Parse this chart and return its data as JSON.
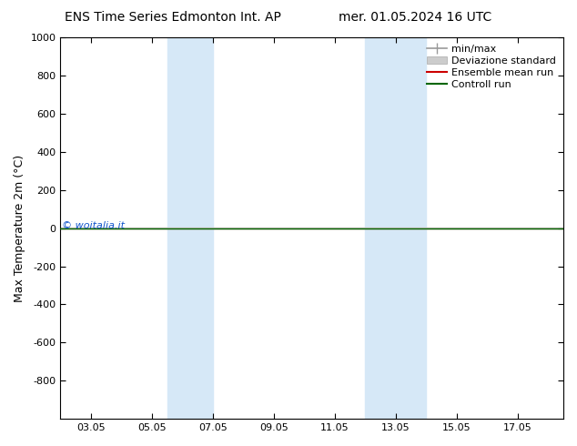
{
  "title_left": "ENS Time Series Edmonton Int. AP",
  "title_right": "mer. 01.05.2024 16 UTC",
  "ylabel": "Max Temperature 2m (°C)",
  "xlabel_ticks": [
    "03.05",
    "05.05",
    "07.05",
    "09.05",
    "11.05",
    "13.05",
    "15.05",
    "17.05"
  ],
  "xlabel_values": [
    2,
    4,
    6,
    8,
    10,
    12,
    14,
    16
  ],
  "xlim": [
    1.0,
    17.5
  ],
  "ylim_top": -1000,
  "ylim_bottom": 1000,
  "yticks": [
    -800,
    -600,
    -400,
    -200,
    0,
    200,
    400,
    600,
    800,
    1000
  ],
  "bg_color": "#ffffff",
  "plot_bg_color": "#ffffff",
  "shaded_columns": [
    {
      "x_start": 4.5,
      "x_end": 6.0
    },
    {
      "x_start": 11.0,
      "x_end": 13.0
    }
  ],
  "shaded_color": "#d6e8f7",
  "watermark": "© woitalia.it",
  "watermark_color": "#1155cc",
  "ensemble_mean_color": "#cc0000",
  "control_run_color": "#006600",
  "minmax_color": "#999999",
  "std_color": "#cccccc",
  "legend_entries": [
    "min/max",
    "Deviazione standard",
    "Ensemble mean run",
    "Controll run"
  ],
  "horizontal_line_y": 0,
  "title_fontsize": 10,
  "tick_fontsize": 8,
  "ylabel_fontsize": 9,
  "legend_fontsize": 8
}
